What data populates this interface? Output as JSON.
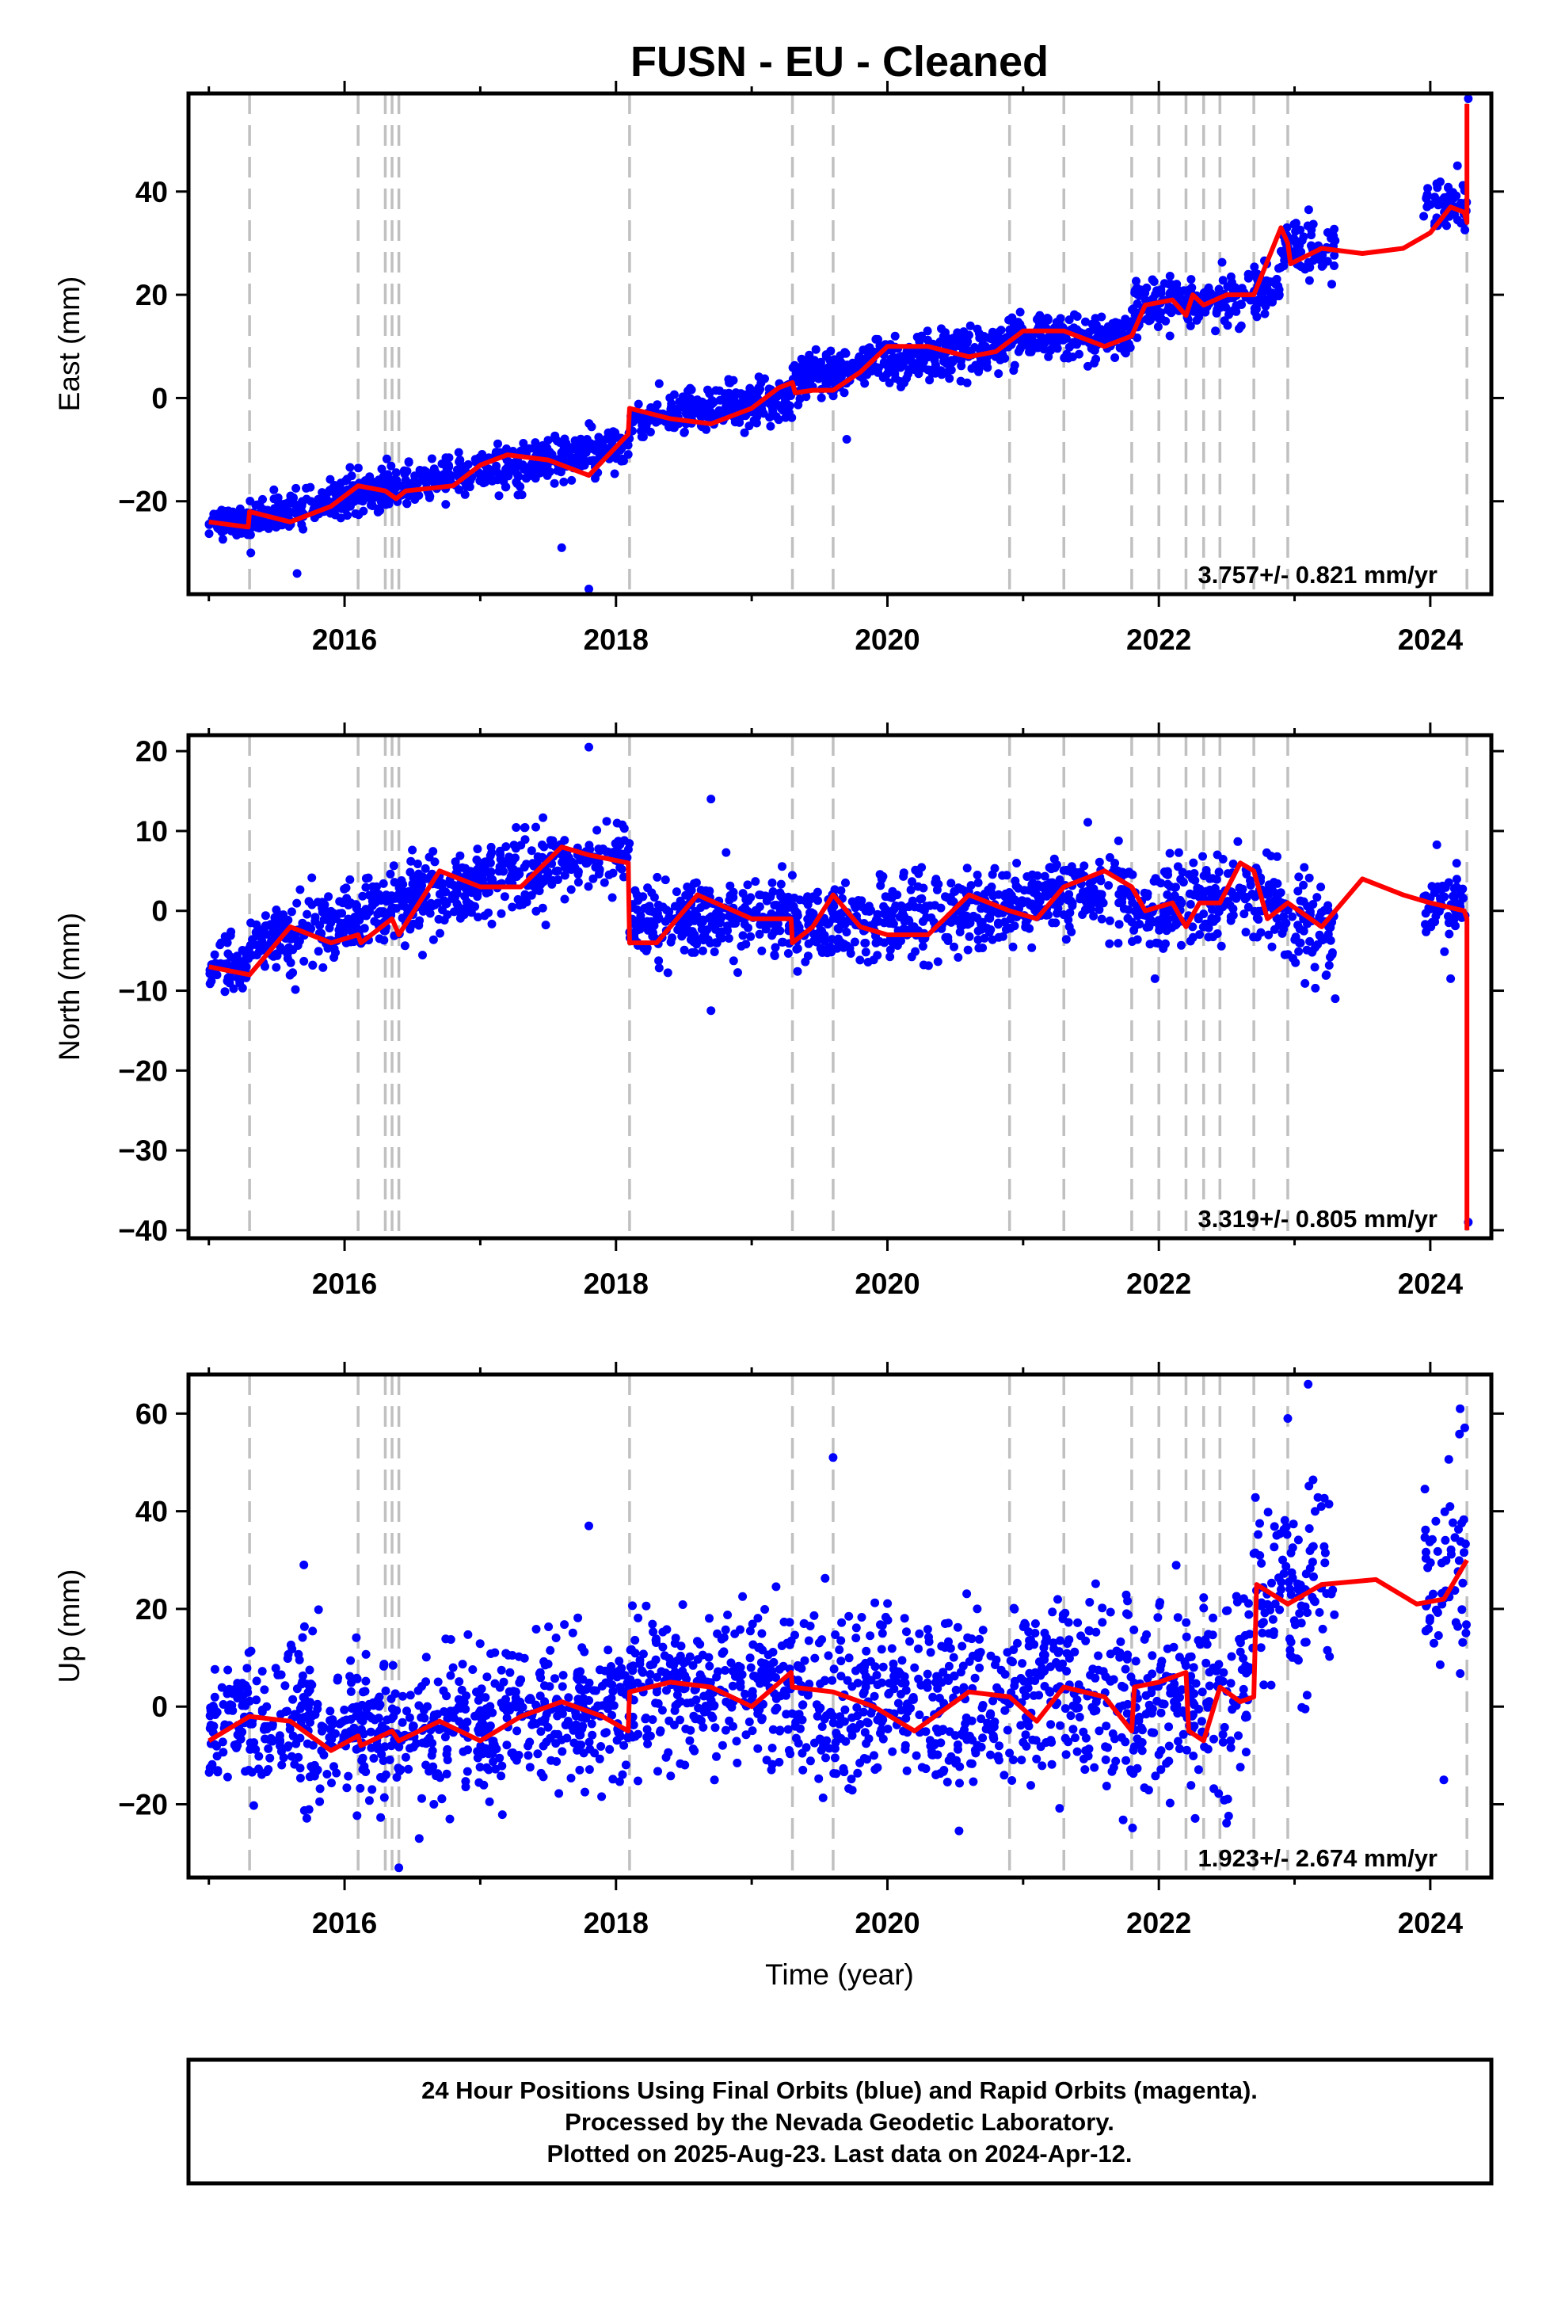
{
  "title": "FUSN  - EU - Cleaned",
  "xlabel": "Time (year)",
  "footer": {
    "line1": "24 Hour Positions Using Final Orbits (blue) and Rapid Orbits (magenta).",
    "line2": "Processed by the Nevada Geodetic Laboratory.",
    "line3": "Plotted on 2025-Aug-23. Last data on 2024-Apr-12."
  },
  "colors": {
    "points": "#0000ff",
    "model": "#ff0000",
    "events": "#c0c0c0"
  },
  "chart_data": [
    {
      "type": "scatter",
      "ylabel": "East (mm)",
      "xlim": [
        2014.85,
        2024.45
      ],
      "ylim": [
        -38,
        59
      ],
      "xticks": [
        2016,
        2018,
        2020,
        2022,
        2024
      ],
      "yticks": [
        -20,
        0,
        20,
        40
      ],
      "rate_label": "3.757+/- 0.821 mm/yr",
      "event_lines": [
        2015.3,
        2016.1,
        2016.3,
        2016.35,
        2016.4,
        2018.1,
        2019.3,
        2019.6,
        2020.9,
        2021.3,
        2021.8,
        2022.0,
        2022.2,
        2022.33,
        2022.45,
        2022.7,
        2022.95,
        2024.27
      ],
      "model": {
        "x": [
          2015.0,
          2015.29,
          2015.3,
          2015.6,
          2015.9,
          2016.1,
          2016.3,
          2016.38,
          2016.45,
          2016.8,
          2017.0,
          2017.2,
          2017.5,
          2017.8,
          2018.09,
          2018.1,
          2018.4,
          2018.7,
          2019.0,
          2019.2,
          2019.3,
          2019.32,
          2019.45,
          2019.6,
          2019.8,
          2020.0,
          2020.3,
          2020.6,
          2020.8,
          2021.0,
          2021.3,
          2021.6,
          2021.8,
          2021.9,
          2022.1,
          2022.2,
          2022.25,
          2022.33,
          2022.5,
          2022.7,
          2022.9,
          2022.95,
          2022.97,
          2023.2,
          2023.5,
          2023.8,
          2024.0,
          2024.15,
          2024.25,
          2024.27,
          2024.27
        ],
        "y": [
          -24,
          -25,
          -22,
          -24,
          -21,
          -17,
          -18,
          -19.5,
          -18,
          -17,
          -13,
          -11,
          -12,
          -15,
          -7,
          -2,
          -4,
          -5,
          -2,
          2,
          3,
          1,
          1.5,
          1.5,
          5,
          10,
          10,
          8,
          9,
          13,
          13,
          10,
          12,
          18,
          19,
          16,
          20,
          18,
          20,
          20,
          33,
          30,
          26,
          29,
          28,
          29,
          32,
          37,
          36,
          34,
          57
        ]
      },
      "segments": [
        {
          "x0": 2015.0,
          "x1": 2015.3,
          "mean": -24,
          "slope": 0,
          "noise": 1.4,
          "count": 70
        },
        {
          "x0": 2015.3,
          "x1": 2016.1,
          "mean": -21,
          "slope": 7,
          "noise": 1.8,
          "count": 180
        },
        {
          "x0": 2016.1,
          "x1": 2018.1,
          "mean": -14,
          "slope": 5,
          "noise": 2.0,
          "count": 460
        },
        {
          "x0": 2018.1,
          "x1": 2019.3,
          "mean": -2,
          "slope": 4,
          "noise": 2.0,
          "count": 280
        },
        {
          "x0": 2019.3,
          "x1": 2020.9,
          "mean": 7,
          "slope": 4,
          "noise": 2.3,
          "count": 360
        },
        {
          "x0": 2020.9,
          "x1": 2021.8,
          "mean": 12,
          "slope": 0,
          "noise": 2.0,
          "count": 200
        },
        {
          "x0": 2021.8,
          "x1": 2022.9,
          "mean": 19,
          "slope": 2,
          "noise": 2.6,
          "count": 230
        },
        {
          "x0": 2022.9,
          "x1": 2023.3,
          "mean": 29,
          "slope": 0,
          "noise": 3.0,
          "count": 80
        },
        {
          "x0": 2023.95,
          "x1": 2024.27,
          "mean": 37,
          "slope": 0,
          "noise": 2.5,
          "count": 60
        }
      ],
      "extra_points": [
        [
          2015.65,
          -34
        ],
        [
          2017.6,
          -29
        ],
        [
          2017.8,
          -37
        ],
        [
          2019.7,
          -8
        ],
        [
          2024.28,
          58
        ],
        [
          2024.2,
          45
        ]
      ]
    },
    {
      "type": "scatter",
      "ylabel": "North (mm)",
      "xlim": [
        2014.85,
        2024.45
      ],
      "ylim": [
        -41,
        22
      ],
      "xticks": [
        2016,
        2018,
        2020,
        2022,
        2024
      ],
      "yticks": [
        -40,
        -30,
        -20,
        -10,
        0,
        10,
        20
      ],
      "rate_label": "3.319+/- 0.805 mm/yr",
      "event_lines": [
        2015.3,
        2016.1,
        2016.3,
        2016.35,
        2016.4,
        2018.1,
        2019.3,
        2019.6,
        2020.9,
        2021.3,
        2021.8,
        2022.0,
        2022.2,
        2022.33,
        2022.45,
        2022.7,
        2022.95,
        2024.27
      ],
      "model": {
        "x": [
          2015.0,
          2015.3,
          2015.6,
          2015.9,
          2016.1,
          2016.12,
          2016.35,
          2016.4,
          2016.7,
          2017.0,
          2017.3,
          2017.6,
          2017.8,
          2018.09,
          2018.1,
          2018.3,
          2018.6,
          2019.0,
          2019.29,
          2019.3,
          2019.45,
          2019.6,
          2019.8,
          2020.0,
          2020.3,
          2020.6,
          2020.9,
          2021.1,
          2021.3,
          2021.6,
          2021.8,
          2021.9,
          2022.1,
          2022.2,
          2022.3,
          2022.45,
          2022.6,
          2022.7,
          2022.8,
          2022.95,
          2023.2,
          2023.5,
          2023.8,
          2024.0,
          2024.25,
          2024.27,
          2024.27
        ],
        "y": [
          -7,
          -8,
          -2,
          -4,
          -3,
          -4,
          -1,
          -3,
          5,
          3,
          3,
          8,
          7,
          6,
          -4,
          -4,
          2,
          -1,
          -1,
          -4,
          -2,
          2,
          -2,
          -3,
          -3,
          2,
          0,
          -1,
          3,
          5,
          3,
          0,
          1,
          -2,
          1,
          1,
          6,
          5,
          -1,
          1,
          -2,
          4,
          2,
          1,
          0,
          -1,
          -40
        ]
      },
      "segments": [
        {
          "x0": 2015.0,
          "x1": 2015.3,
          "mean": -7,
          "slope": 0,
          "noise": 1.8,
          "count": 70
        },
        {
          "x0": 2015.3,
          "x1": 2016.1,
          "mean": -3,
          "slope": 4,
          "noise": 2.2,
          "count": 180
        },
        {
          "x0": 2016.1,
          "x1": 2018.1,
          "mean": 4,
          "slope": 4,
          "noise": 2.2,
          "count": 460
        },
        {
          "x0": 2018.1,
          "x1": 2019.3,
          "mean": -1,
          "slope": 1,
          "noise": 2.3,
          "count": 280
        },
        {
          "x0": 2019.3,
          "x1": 2020.9,
          "mean": -1,
          "slope": 1.5,
          "noise": 2.5,
          "count": 360
        },
        {
          "x0": 2020.9,
          "x1": 2021.8,
          "mean": 2,
          "slope": 3,
          "noise": 2.3,
          "count": 200
        },
        {
          "x0": 2021.8,
          "x1": 2022.9,
          "mean": 1,
          "slope": 2,
          "noise": 2.8,
          "count": 230
        },
        {
          "x0": 2022.9,
          "x1": 2023.3,
          "mean": -2,
          "slope": 0,
          "noise": 3.0,
          "count": 80
        },
        {
          "x0": 2023.95,
          "x1": 2024.27,
          "mean": 1,
          "slope": 0,
          "noise": 2.2,
          "count": 60
        }
      ],
      "extra_points": [
        [
          2017.8,
          20.5
        ],
        [
          2018.7,
          14
        ],
        [
          2018.7,
          -12.5
        ],
        [
          2024.28,
          -39
        ],
        [
          2024.15,
          -8.5
        ],
        [
          2023.3,
          -11
        ]
      ]
    },
    {
      "type": "scatter",
      "ylabel": "Up (mm)",
      "xlim": [
        2014.85,
        2024.45
      ],
      "ylim": [
        -35,
        68
      ],
      "xticks": [
        2016,
        2018,
        2020,
        2022,
        2024
      ],
      "yticks": [
        -20,
        0,
        20,
        40,
        60
      ],
      "rate_label": "1.923+/- 2.674 mm/yr",
      "event_lines": [
        2015.3,
        2016.1,
        2016.3,
        2016.35,
        2016.4,
        2018.1,
        2019.3,
        2019.6,
        2020.9,
        2021.3,
        2021.8,
        2022.0,
        2022.2,
        2022.33,
        2022.45,
        2022.7,
        2022.95,
        2024.27
      ],
      "model": {
        "x": [
          2015.0,
          2015.3,
          2015.6,
          2015.9,
          2016.1,
          2016.12,
          2016.35,
          2016.4,
          2016.7,
          2017.0,
          2017.3,
          2017.6,
          2017.9,
          2018.09,
          2018.1,
          2018.4,
          2018.7,
          2019.0,
          2019.29,
          2019.3,
          2019.6,
          2019.9,
          2020.2,
          2020.6,
          2020.9,
          2021.1,
          2021.3,
          2021.6,
          2021.8,
          2021.82,
          2022.0,
          2022.2,
          2022.22,
          2022.33,
          2022.45,
          2022.6,
          2022.7,
          2022.72,
          2022.95,
          2023.2,
          2023.6,
          2023.9,
          2024.1,
          2024.27
        ],
        "y": [
          -7,
          -2,
          -3,
          -9,
          -6,
          -8,
          -5,
          -7,
          -3,
          -7,
          -2,
          1,
          -2,
          -5,
          3,
          5,
          4,
          0,
          7,
          4,
          3,
          0,
          -5,
          3,
          2,
          -3,
          4,
          2,
          -5,
          4,
          5,
          7,
          -5,
          -7,
          4,
          1,
          2,
          25,
          21,
          25,
          26,
          21,
          22,
          30
        ]
      },
      "segments": [
        {
          "x0": 2015.0,
          "x1": 2015.3,
          "mean": -3,
          "slope": 0,
          "noise": 7,
          "count": 70
        },
        {
          "x0": 2015.3,
          "x1": 2016.1,
          "mean": -4,
          "slope": 0,
          "noise": 8,
          "count": 180
        },
        {
          "x0": 2016.1,
          "x1": 2018.1,
          "mean": -3,
          "slope": 3,
          "noise": 7,
          "count": 460
        },
        {
          "x0": 2018.1,
          "x1": 2019.3,
          "mean": 4,
          "slope": 0,
          "noise": 7.5,
          "count": 280
        },
        {
          "x0": 2019.3,
          "x1": 2020.9,
          "mean": 1,
          "slope": 0,
          "noise": 9,
          "count": 360
        },
        {
          "x0": 2020.9,
          "x1": 2021.8,
          "mean": 3,
          "slope": 0,
          "noise": 9,
          "count": 200
        },
        {
          "x0": 2021.8,
          "x1": 2022.7,
          "mean": 1,
          "slope": 0,
          "noise": 10,
          "count": 200
        },
        {
          "x0": 2022.7,
          "x1": 2023.3,
          "mean": 24,
          "slope": 0,
          "noise": 10,
          "count": 110
        },
        {
          "x0": 2023.95,
          "x1": 2024.27,
          "mean": 27,
          "slope": 0,
          "noise": 12,
          "count": 60
        }
      ],
      "extra_points": [
        [
          2015.7,
          29
        ],
        [
          2017.8,
          37
        ],
        [
          2019.6,
          51
        ],
        [
          2023.1,
          66
        ],
        [
          2022.95,
          59
        ],
        [
          2016.4,
          -33
        ],
        [
          2024.22,
          61
        ],
        [
          2024.1,
          -15
        ],
        [
          2016.55,
          -27
        ]
      ]
    }
  ]
}
